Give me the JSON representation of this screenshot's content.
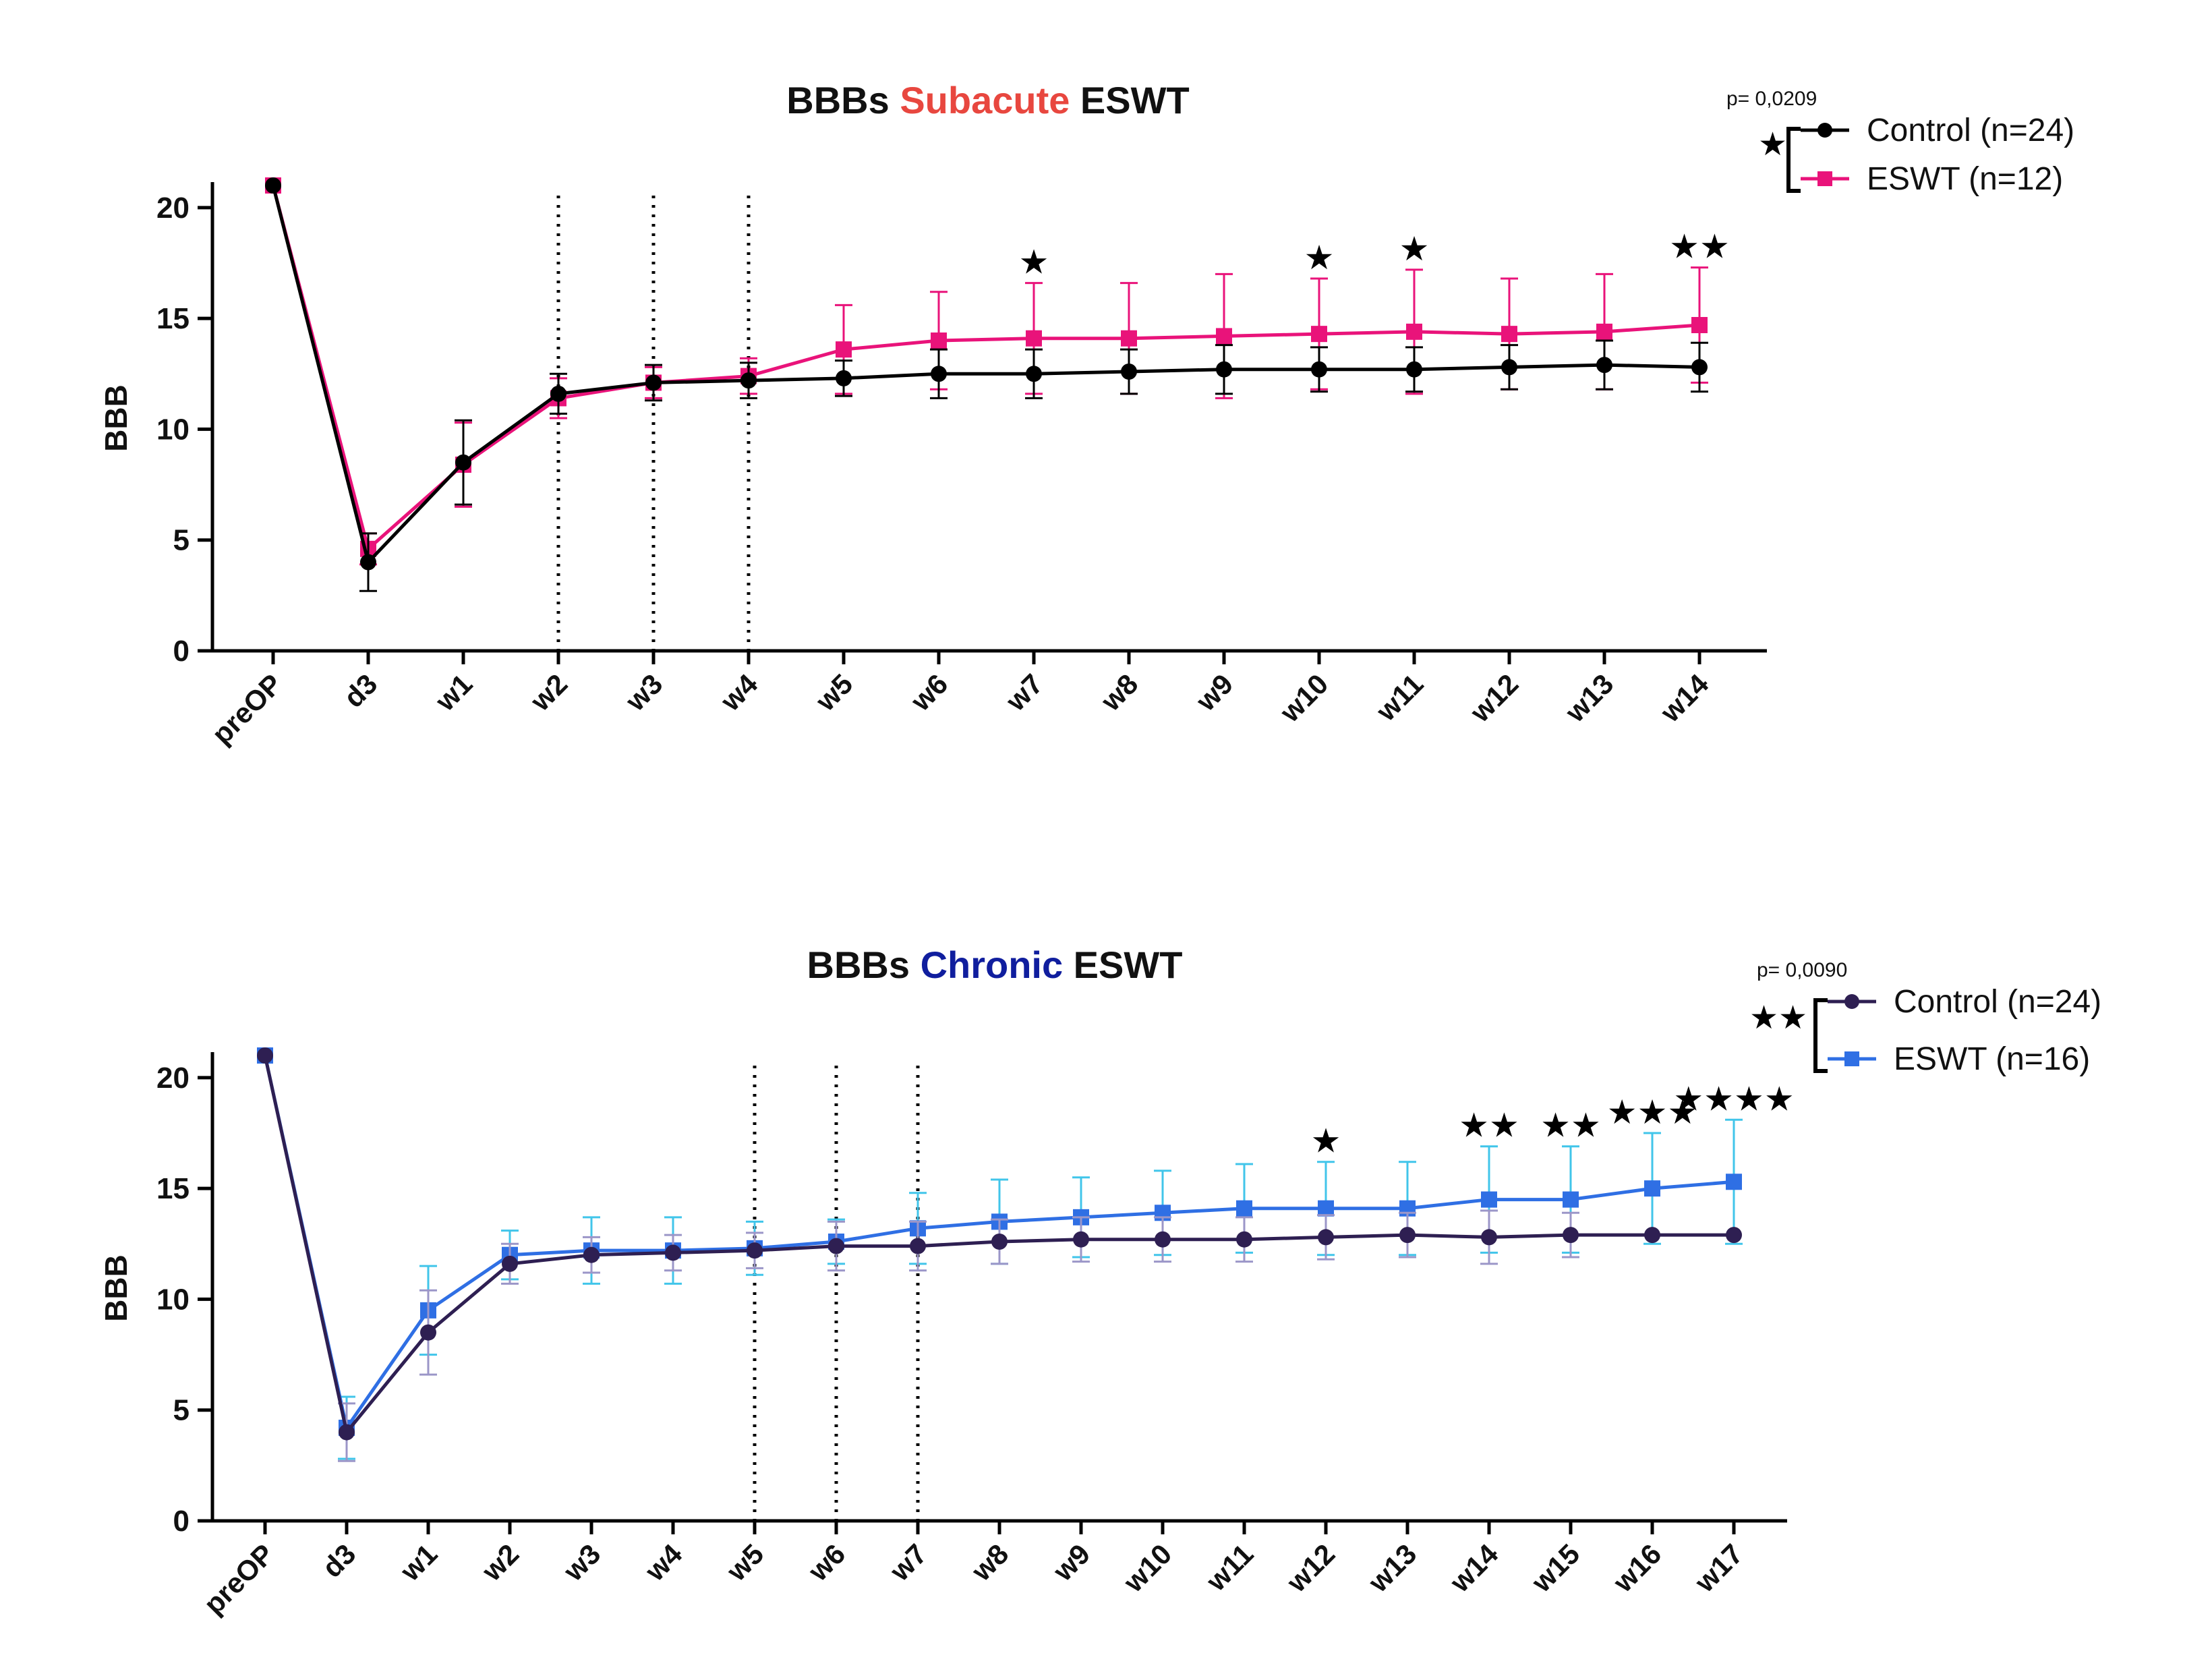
{
  "chart_data": [
    {
      "type": "line",
      "title_parts": [
        "BBBs ",
        "Subacute",
        " ESWT"
      ],
      "title_color": "#e8473f",
      "ylabel": "BBB",
      "xlabel": "",
      "ylim": [
        0,
        21
      ],
      "yticks": [
        0,
        5,
        10,
        15,
        20
      ],
      "grid": false,
      "legend_position": "top-right",
      "categories": [
        "preOP",
        "d3",
        "w1",
        "w2",
        "w3",
        "w4",
        "w5",
        "w6",
        "w7",
        "w8",
        "w9",
        "w10",
        "w11",
        "w12",
        "w13",
        "w14"
      ],
      "treatment_lines": [
        "w2",
        "w3",
        "w4"
      ],
      "series": [
        {
          "name": "Control (n=24)",
          "marker": "circle",
          "color": "#000000",
          "error_color": "#000000",
          "values": [
            21,
            4.0,
            8.5,
            11.6,
            12.1,
            12.2,
            12.3,
            12.5,
            12.5,
            12.6,
            12.7,
            12.7,
            12.7,
            12.8,
            12.9,
            12.8
          ],
          "errors": [
            0,
            1.3,
            1.9,
            0.9,
            0.8,
            0.8,
            0.8,
            1.1,
            1.1,
            1.0,
            1.1,
            1.0,
            1.0,
            1.0,
            1.1,
            1.1
          ]
        },
        {
          "name": "ESWT (n=12)",
          "marker": "square",
          "color": "#e9137a",
          "error_color": "#e9137a",
          "values": [
            21,
            4.6,
            8.4,
            11.4,
            12.1,
            12.4,
            13.6,
            14.0,
            14.1,
            14.1,
            14.2,
            14.3,
            14.4,
            14.3,
            14.4,
            14.7
          ],
          "errors": [
            0,
            0.7,
            1.9,
            0.9,
            0.7,
            0.8,
            2.0,
            2.2,
            2.5,
            2.5,
            2.8,
            2.5,
            2.8,
            2.5,
            2.6,
            2.6
          ]
        }
      ],
      "significance": [
        {
          "category": "w7",
          "stars": "★"
        },
        {
          "category": "w10",
          "stars": "★"
        },
        {
          "category": "w11",
          "stars": "★"
        },
        {
          "category": "w14",
          "stars": "★★"
        }
      ],
      "legend_p": "p= 0,0209",
      "legend_stars": "★"
    },
    {
      "type": "line",
      "title_parts": [
        "BBBs ",
        "Chronic",
        " ESWT"
      ],
      "title_color": "#101e9e",
      "ylabel": "BBB",
      "xlabel": "",
      "ylim": [
        0,
        21
      ],
      "yticks": [
        0,
        5,
        10,
        15,
        20
      ],
      "grid": false,
      "legend_position": "top-right",
      "categories": [
        "preOP",
        "d3",
        "w1",
        "w2",
        "w3",
        "w4",
        "w5",
        "w6",
        "w7",
        "w8",
        "w9",
        "w10",
        "w11",
        "w12",
        "w13",
        "w14",
        "w15",
        "w16",
        "w17"
      ],
      "treatment_lines": [
        "w5",
        "w6",
        "w7"
      ],
      "series": [
        {
          "name": "Control (n=24)",
          "marker": "circle",
          "color": "#2e1f52",
          "error_color": "#9b96c8",
          "values": [
            21,
            4.0,
            8.5,
            11.6,
            12.0,
            12.1,
            12.2,
            12.4,
            12.4,
            12.6,
            12.7,
            12.7,
            12.7,
            12.8,
            12.9,
            12.8,
            12.9,
            12.9,
            12.9
          ],
          "errors": [
            0,
            1.3,
            1.9,
            0.9,
            0.8,
            0.8,
            0.8,
            1.1,
            1.1,
            1.0,
            1.0,
            1.0,
            1.0,
            1.0,
            1.0,
            1.2,
            1.0,
            0,
            0
          ]
        },
        {
          "name": "ESWT (n=16)",
          "marker": "square",
          "color": "#2f6fe4",
          "error_color": "#41c5ea",
          "values": [
            21,
            4.2,
            9.5,
            12.0,
            12.2,
            12.2,
            12.3,
            12.6,
            13.2,
            13.5,
            13.7,
            13.9,
            14.1,
            14.1,
            14.1,
            14.5,
            14.5,
            15.0,
            15.3
          ],
          "errors": [
            0,
            1.4,
            2.0,
            1.1,
            1.5,
            1.5,
            1.2,
            1.0,
            1.6,
            1.9,
            1.8,
            1.9,
            2.0,
            2.1,
            2.1,
            2.4,
            2.4,
            2.5,
            2.8
          ]
        }
      ],
      "significance": [
        {
          "category": "w12",
          "stars": "★"
        },
        {
          "category": "w14",
          "stars": "★★"
        },
        {
          "category": "w15",
          "stars": "★★"
        },
        {
          "category": "w16",
          "stars": "★★★"
        },
        {
          "category": "w17",
          "stars": "★★★★"
        }
      ],
      "legend_p": "p= 0,0090",
      "legend_stars": "★★"
    }
  ]
}
